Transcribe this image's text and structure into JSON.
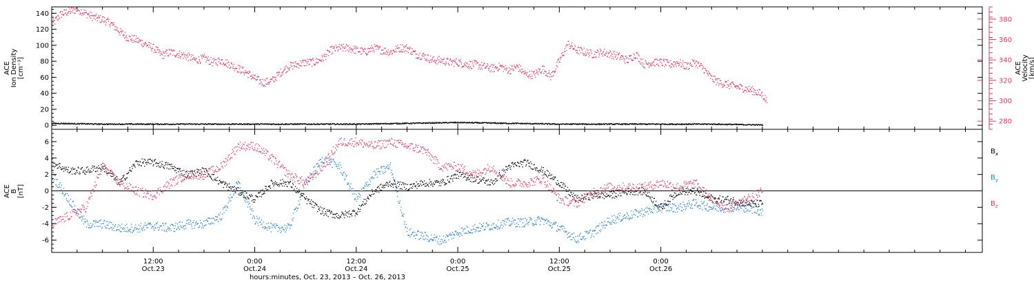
{
  "colors": {
    "black": "#000000",
    "pink": "#e8345e",
    "blue": "#1f84d6",
    "frame": "#000000"
  },
  "chart_data": [
    {
      "type": "scatter",
      "panel": "top",
      "ylabel_lines": [
        "ACE",
        "Ion Density",
        "[cm⁻³]"
      ],
      "ylabel_right_lines": [
        "ACE",
        "Velocity",
        "[km/s]"
      ],
      "ylim": [
        -5,
        148
      ],
      "yticks": [
        0,
        20,
        40,
        60,
        80,
        100,
        120,
        140
      ],
      "ylim_right": [
        272,
        392
      ],
      "yticks_right": [
        280,
        300,
        320,
        340,
        360,
        380
      ],
      "grid": false,
      "series": [
        {
          "axis": "left",
          "color": "black",
          "x": [
            0,
            6,
            12,
            18,
            24,
            30,
            36,
            42,
            48,
            54,
            60,
            66,
            72,
            78,
            84
          ],
          "y": [
            3,
            2,
            2,
            2,
            2,
            2,
            2,
            3,
            4,
            3,
            2,
            2,
            2,
            2,
            1
          ]
        },
        {
          "axis": "right",
          "color": "pink",
          "x": [
            0,
            1,
            2,
            3,
            4,
            5,
            6,
            7,
            8,
            9,
            10,
            11,
            12,
            13,
            14,
            15,
            16,
            17,
            18,
            19,
            20,
            21,
            22,
            23,
            24,
            25,
            26,
            27,
            28,
            29,
            30,
            31,
            32,
            33,
            34,
            35,
            36,
            37,
            38,
            39,
            40,
            41,
            42,
            43,
            44,
            45,
            46,
            47,
            48,
            49,
            50,
            51,
            52,
            53,
            54,
            55,
            56,
            57,
            58,
            59,
            60,
            61,
            62,
            63,
            64,
            65,
            66,
            67,
            68,
            69,
            70,
            71,
            72,
            73,
            74,
            75,
            76,
            77,
            78,
            79,
            80,
            81,
            82,
            83,
            84,
            84.5
          ],
          "y": [
            375,
            385,
            388,
            390,
            386,
            382,
            380,
            376,
            368,
            362,
            360,
            356,
            352,
            345,
            348,
            346,
            344,
            340,
            342,
            338,
            340,
            336,
            332,
            328,
            322,
            318,
            320,
            328,
            334,
            336,
            338,
            338,
            342,
            350,
            352,
            352,
            350,
            348,
            352,
            350,
            348,
            352,
            352,
            346,
            344,
            340,
            340,
            338,
            338,
            336,
            336,
            334,
            332,
            334,
            330,
            334,
            326,
            326,
            332,
            324,
            340,
            356,
            350,
            348,
            346,
            348,
            346,
            344,
            340,
            346,
            336,
            338,
            338,
            336,
            338,
            334,
            338,
            332,
            322,
            318,
            316,
            314,
            312,
            310,
            306,
            300
          ]
        }
      ]
    },
    {
      "type": "scatter",
      "panel": "bottom",
      "ylabel_lines": [
        "ACE",
        "B",
        "[nT]"
      ],
      "ylim": [
        -7.5,
        7.5
      ],
      "yticks": [
        -6,
        -4,
        -2,
        0,
        2,
        4,
        6
      ],
      "zero_line": true,
      "grid": false,
      "series": [
        {
          "name": "Bx",
          "name_main": "B",
          "name_sub": "x",
          "color": "black",
          "x": [
            0,
            2,
            4,
            6,
            8,
            10,
            12,
            14,
            16,
            18,
            20,
            22,
            24,
            26,
            28,
            30,
            32,
            34,
            36,
            38,
            40,
            42,
            44,
            46,
            48,
            50,
            52,
            54,
            56,
            58,
            60,
            62,
            64,
            66,
            68,
            70,
            72,
            74,
            76,
            78,
            80,
            82,
            84
          ],
          "y": [
            3.5,
            2.5,
            2.5,
            3,
            1,
            3.5,
            3.5,
            3,
            2,
            2.5,
            1,
            0,
            -1,
            1,
            1,
            -1,
            -2.5,
            -3,
            -2.5,
            0,
            1,
            0.5,
            1,
            1,
            2,
            1.5,
            1,
            3,
            3.5,
            2.5,
            1,
            -1,
            -0.5,
            -0.5,
            0,
            0,
            -2,
            0,
            0,
            -1,
            -1,
            -1.5,
            -1.5
          ]
        },
        {
          "name": "By",
          "name_main": "B",
          "name_sub": "y",
          "color": "blue",
          "x": [
            0,
            2,
            4,
            6,
            8,
            10,
            12,
            14,
            16,
            18,
            20,
            22,
            24,
            26,
            28,
            30,
            32,
            34,
            36,
            38,
            40,
            42,
            44,
            46,
            48,
            50,
            52,
            54,
            56,
            58,
            60,
            62,
            64,
            66,
            68,
            70,
            72,
            74,
            76,
            78,
            80,
            82,
            84
          ],
          "y": [
            2,
            -1,
            -4,
            -4,
            -4.5,
            -4.5,
            -4.2,
            -4.5,
            -4,
            -4,
            -3,
            1,
            -3.5,
            -4.5,
            -4.5,
            1,
            4,
            3,
            -1,
            2,
            3,
            -5,
            -5.5,
            -6,
            -5,
            -4.5,
            -4.2,
            -3.8,
            -3.8,
            -3.5,
            -4.5,
            -5.8,
            -5,
            -3.5,
            -3,
            -2.5,
            -2,
            -2,
            -1.5,
            -2,
            -2,
            -2,
            -2.5
          ]
        },
        {
          "name": "Bz",
          "name_main": "B",
          "name_sub": "z",
          "color": "pink",
          "x": [
            0,
            2,
            4,
            6,
            8,
            10,
            12,
            14,
            16,
            18,
            20,
            22,
            24,
            26,
            28,
            30,
            32,
            34,
            36,
            38,
            40,
            42,
            44,
            46,
            48,
            50,
            52,
            54,
            56,
            58,
            60,
            62,
            64,
            66,
            68,
            70,
            72,
            74,
            76,
            78,
            80,
            82,
            84
          ],
          "y": [
            -4,
            -3,
            -2,
            3,
            1,
            0,
            -0.5,
            1,
            2,
            2,
            3,
            5.5,
            5.5,
            4,
            2,
            1,
            3,
            6,
            6,
            5.5,
            6,
            5.5,
            5,
            3,
            3,
            2,
            3,
            1,
            1,
            1.5,
            -1,
            -1.5,
            0,
            0.5,
            0.5,
            0.5,
            1,
            0.5,
            1,
            -1,
            -2,
            -1,
            0
          ]
        }
      ]
    }
  ],
  "time_axis": {
    "tick_hours": [
      12,
      24,
      36,
      48,
      60,
      72
    ],
    "labels_top": [
      "12:00",
      "0:00",
      "12:00",
      "0:00",
      "12:00",
      "0:00"
    ],
    "labels_bottom": [
      "Oct.23",
      "Oct.24",
      "Oct.24",
      "Oct.25",
      "Oct.25",
      "Oct.26"
    ],
    "xlim_hours": [
      0,
      110
    ],
    "title": "hours:minutes, Oct. 23, 2013 – Oct. 26, 2013"
  }
}
